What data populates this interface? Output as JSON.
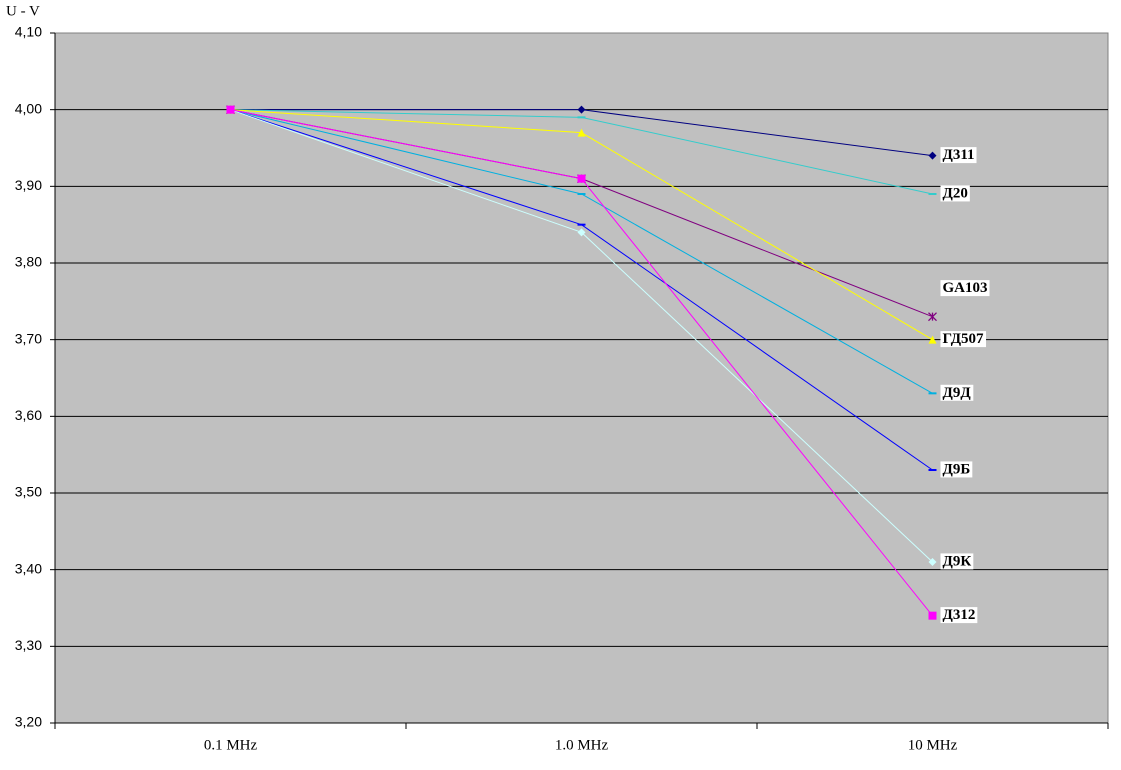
{
  "chart_data": {
    "type": "line",
    "y_label": "U - V",
    "categories": [
      "0.1 MHz",
      "1.0 MHz",
      "10 MHz"
    ],
    "ylim": [
      3.2,
      4.1
    ],
    "yticks": [
      {
        "value": 3.2,
        "label": "3,20"
      },
      {
        "value": 3.3,
        "label": "3,30"
      },
      {
        "value": 3.4,
        "label": "3,40"
      },
      {
        "value": 3.5,
        "label": "3,50"
      },
      {
        "value": 3.6,
        "label": "3,60"
      },
      {
        "value": 3.7,
        "label": "3,70"
      },
      {
        "value": 3.8,
        "label": "3,80"
      },
      {
        "value": 3.9,
        "label": "3,90"
      },
      {
        "value": 4.0,
        "label": "4,00"
      },
      {
        "value": 4.1,
        "label": "4,10"
      }
    ],
    "grid": true,
    "series": [
      {
        "name": "Д311",
        "color": "#000080",
        "marker": "diamond",
        "values": [
          4.0,
          4.0,
          3.94
        ]
      },
      {
        "name": "Д20",
        "color": "#33cccc",
        "marker": "dash",
        "values": [
          4.0,
          3.99,
          3.89
        ]
      },
      {
        "name": "GA103",
        "color": "#800080",
        "marker": "star",
        "values": [
          4.0,
          3.91,
          3.73
        ]
      },
      {
        "name": "ГД507",
        "color": "#ffff00",
        "marker": "triangle",
        "values": [
          4.0,
          3.97,
          3.7
        ]
      },
      {
        "name": "Д9Д",
        "color": "#00b0e0",
        "marker": "dash",
        "values": [
          4.0,
          3.89,
          3.63
        ]
      },
      {
        "name": "Д9Б",
        "color": "#0000ff",
        "marker": "dash",
        "values": [
          4.0,
          3.85,
          3.53
        ]
      },
      {
        "name": "Д9К",
        "color": "#ccffff",
        "marker": "diamond",
        "values": [
          4.0,
          3.84,
          3.41
        ]
      },
      {
        "name": "Д312",
        "color": "#ff00ff",
        "marker": "square",
        "values": [
          4.0,
          3.91,
          3.34
        ]
      }
    ]
  }
}
